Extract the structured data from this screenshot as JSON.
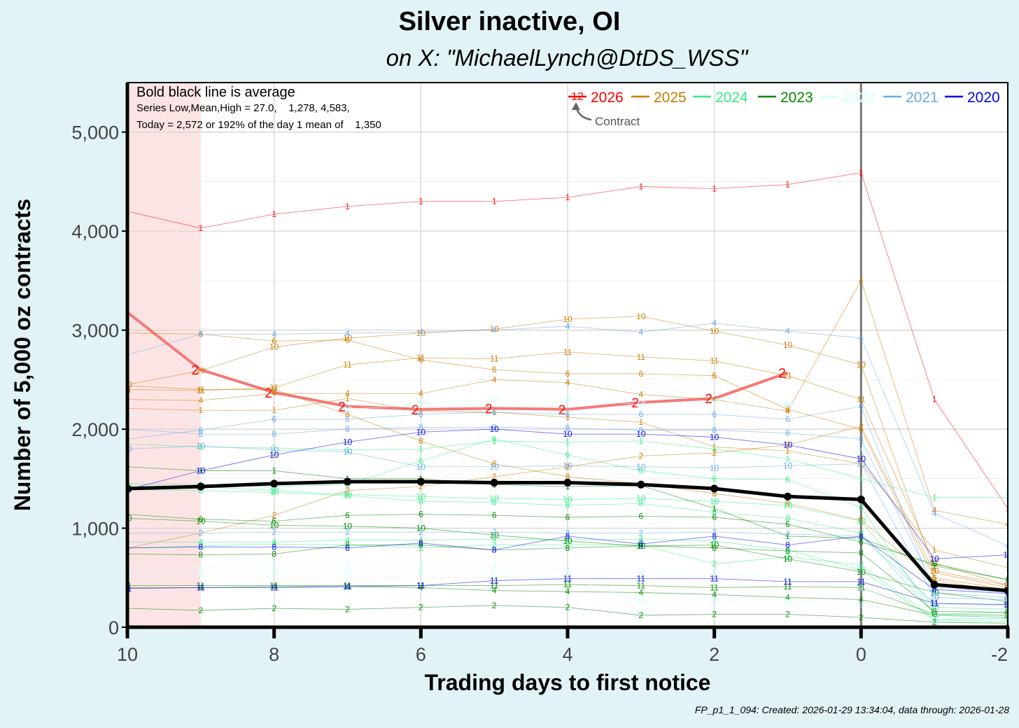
{
  "title": "Silver inactive, OI",
  "subtitle": "on X:   \"MichaelLynch@DtDS_WSS\"",
  "caption": "FP_p1_1_094: Created: 2026-01-29 13:34:04, data through: 2026-01-28",
  "annotations": {
    "line1": "Bold black line is average",
    "line2": "Series Low,Mean,High = 27.0,    1,278, 4,583,",
    "line3": "Today = 2,572 or 192% of the day 1 mean of    1,350",
    "contract_label": "Contract",
    "contract_code": "12"
  },
  "chart_data": {
    "type": "line",
    "xlabel": "Trading days to first notice",
    "ylabel": "Number of 5,000 oz contracts",
    "xlim": [
      10,
      -2
    ],
    "ylim": [
      0,
      5500
    ],
    "x_ticks": [
      "10",
      "8",
      "6",
      "4",
      "2",
      "0",
      "-2"
    ],
    "x_tick_values": [
      10,
      8,
      6,
      4,
      2,
      0,
      -2
    ],
    "y_ticks": [
      "0",
      "1,000",
      "2,000",
      "3,000",
      "4,000",
      "5,000"
    ],
    "y_tick_values": [
      0,
      1000,
      2000,
      3000,
      4000,
      5000
    ],
    "shaded_region": [
      10,
      9
    ],
    "vertical_line_at": 0,
    "legend": [
      {
        "label": "2026",
        "color": "#ff0000"
      },
      {
        "label": "2025",
        "color": "#cc7a00"
      },
      {
        "label": "2024",
        "color": "#33ee88"
      },
      {
        "label": "2023",
        "color": "#008800"
      },
      {
        "label": "2022",
        "color": "#ccffff"
      },
      {
        "label": "2021",
        "color": "#66aaee"
      },
      {
        "label": "2020",
        "color": "#0000ee"
      }
    ],
    "x": [
      10,
      9,
      8,
      7,
      6,
      5,
      4,
      3,
      2,
      1,
      0,
      -1,
      -2
    ],
    "series": [
      {
        "name": "2026-1",
        "year": "2026",
        "contract": "1",
        "color": "#ff0000",
        "values": [
          4200,
          4030,
          4170,
          4250,
          4300,
          4300,
          4340,
          4450,
          4430,
          4470,
          4590,
          2300,
          1200
        ]
      },
      {
        "name": "2026-2",
        "year": "2026",
        "contract": "2",
        "color": "#ff0000",
        "highlight": true,
        "values": [
          3180,
          2600,
          2370,
          2230,
          2200,
          2210,
          2200,
          2270,
          2310,
          2570,
          null,
          null,
          null
        ]
      },
      {
        "name": "2025-10",
        "year": "2025",
        "contract": "10",
        "color": "#cc7a00",
        "values": [
          2450,
          2590,
          2830,
          2920,
          2970,
          3010,
          3110,
          3140,
          2990,
          2850,
          2650,
          570,
          420
        ]
      },
      {
        "name": "2025-6",
        "year": "2025",
        "contract": "6",
        "color": "#cc7a00",
        "values": [
          2970,
          2960,
          2890,
          2900,
          2700,
          2600,
          2560,
          2560,
          2540,
          2200,
          2000,
          500,
          380
        ]
      },
      {
        "name": "2025-11",
        "year": "2025",
        "contract": "11",
        "color": "#cc7a00",
        "values": [
          2400,
          2390,
          2420,
          2650,
          2720,
          2710,
          2780,
          2730,
          2690,
          2540,
          2300,
          650,
          420
        ]
      },
      {
        "name": "2025-4",
        "year": "2025",
        "contract": "4",
        "color": "#cc7a00",
        "values": [
          2300,
          2290,
          2360,
          2360,
          2360,
          2500,
          2470,
          2350,
          2300,
          2180,
          3500,
          1180,
          1040
        ]
      },
      {
        "name": "2025-1",
        "year": "2025",
        "contract": "1",
        "color": "#cc7a00",
        "values": [
          2210,
          2190,
          2190,
          2310,
          2180,
          2170,
          2120,
          2070,
          1820,
          1780,
          1650,
          780,
          600
        ]
      },
      {
        "name": "2025-8",
        "year": "2025",
        "contract": "8",
        "color": "#cc7a00",
        "values": [
          2440,
          2400,
          2400,
          2150,
          1880,
          1650,
          1520,
          1450,
          1350,
          1250,
          1080,
          480,
          350
        ]
      },
      {
        "name": "2025-2",
        "year": "2025",
        "contract": "2",
        "color": "#cc7a00",
        "values": [
          800,
          950,
          1130,
          1380,
          1420,
          1520,
          1620,
          1730,
          1760,
          1840,
          2030,
          550,
          400
        ]
      },
      {
        "name": "2024-1",
        "year": "2024",
        "contract": "1",
        "color": "#33ee88",
        "values": [
          1850,
          1820,
          1810,
          1790,
          1800,
          1880,
          1870,
          1880,
          1800,
          1700,
          1500,
          1310,
          1310
        ]
      },
      {
        "name": "2024-6",
        "year": "2024",
        "contract": "6",
        "color": "#33ee88",
        "values": [
          1450,
          1440,
          1420,
          1440,
          1680,
          1900,
          1740,
          1580,
          1500,
          1490,
          1210,
          120,
          100
        ]
      },
      {
        "name": "2024-10",
        "year": "2024",
        "contract": "10",
        "color": "#33ee88",
        "values": [
          1420,
          1420,
          1380,
          1340,
          1320,
          1300,
          1290,
          1300,
          1270,
          1230,
          1070,
          200,
          180
        ]
      },
      {
        "name": "2024-8",
        "year": "2024",
        "contract": "8",
        "color": "#33ee88",
        "values": [
          1390,
          1380,
          1360,
          1330,
          1270,
          1260,
          1230,
          1250,
          1160,
          1100,
          950,
          130,
          150
        ]
      },
      {
        "name": "2024-2",
        "year": "2024",
        "contract": "2",
        "color": "#33ee88",
        "values": [
          800,
          820,
          840,
          830,
          800,
          830,
          830,
          830,
          640,
          710,
          630,
          80,
          90
        ]
      },
      {
        "name": "2024-4",
        "year": "2024",
        "contract": "4",
        "color": "#33ee88",
        "values": [
          860,
          860,
          860,
          880,
          880,
          890,
          880,
          890,
          870,
          780,
          580,
          70,
          60
        ]
      },
      {
        "name": "2023-1",
        "year": "2023",
        "contract": "1",
        "color": "#008800",
        "values": [
          1620,
          1580,
          1580,
          1500,
          1500,
          1440,
          1420,
          1430,
          1200,
          920,
          900,
          620,
          480
        ]
      },
      {
        "name": "2023-6",
        "year": "2023",
        "contract": "6",
        "color": "#008800",
        "values": [
          1140,
          1090,
          1070,
          1130,
          1140,
          1130,
          1110,
          1120,
          1110,
          1040,
          860,
          640,
          480
        ]
      },
      {
        "name": "2023-10",
        "year": "2023",
        "contract": "10",
        "color": "#008800",
        "values": [
          1100,
          1070,
          1030,
          1020,
          1000,
          930,
          870,
          820,
          830,
          690,
          560,
          350,
          260
        ]
      },
      {
        "name": "2023-8",
        "year": "2023",
        "contract": "8",
        "color": "#008800",
        "values": [
          740,
          730,
          740,
          830,
          830,
          780,
          800,
          820,
          800,
          770,
          750,
          160,
          150
        ]
      },
      {
        "name": "2023-11",
        "year": "2023",
        "contract": "11",
        "color": "#008800",
        "values": [
          420,
          420,
          420,
          420,
          420,
          420,
          430,
          420,
          400,
          410,
          400,
          130,
          120
        ]
      },
      {
        "name": "2023-4",
        "year": "2023",
        "contract": "4",
        "color": "#008800",
        "values": [
          400,
          400,
          410,
          410,
          400,
          370,
          360,
          350,
          330,
          300,
          280,
          120,
          100
        ]
      },
      {
        "name": "2023-2",
        "year": "2023",
        "contract": "2",
        "color": "#008800",
        "values": [
          190,
          170,
          190,
          180,
          200,
          220,
          200,
          120,
          130,
          130,
          100,
          50,
          40
        ]
      },
      {
        "name": "2022-10",
        "year": "2022",
        "contract": "10",
        "color": "#ccffff",
        "values": [
          2150,
          2130,
          2150,
          2200,
          2250,
          2300,
          2300,
          2250,
          2280,
          2250,
          1800,
          300,
          250
        ]
      },
      {
        "name": "2022-2",
        "year": "2022",
        "contract": "2",
        "color": "#ccffff",
        "values": [
          600,
          610,
          620,
          630,
          620,
          600,
          580,
          560,
          550,
          500,
          400,
          120,
          100
        ]
      },
      {
        "name": "2022-11",
        "year": "2022",
        "contract": "11",
        "color": "#ccffff",
        "values": [
          550,
          540,
          560,
          560,
          560,
          520,
          500,
          260,
          260,
          250,
          230,
          80,
          60
        ]
      },
      {
        "name": "2021-4",
        "year": "2021",
        "contract": "4",
        "color": "#66aaee",
        "values": [
          2750,
          2960,
          2960,
          2970,
          2980,
          3000,
          3040,
          2980,
          3070,
          2990,
          2920,
          1150,
          820
        ]
      },
      {
        "name": "2021-6",
        "year": "2021",
        "contract": "6",
        "color": "#66aaee",
        "values": [
          1900,
          1990,
          2100,
          2100,
          2150,
          2170,
          2150,
          2150,
          2150,
          2100,
          2230,
          350,
          300
        ]
      },
      {
        "name": "2021-10",
        "year": "2021",
        "contract": "10",
        "color": "#66aaee",
        "values": [
          1800,
          1830,
          1790,
          1770,
          1620,
          1620,
          1630,
          1620,
          1610,
          1630,
          1650,
          300,
          280
        ]
      },
      {
        "name": "2021-8",
        "year": "2021",
        "contract": "8",
        "color": "#66aaee",
        "values": [
          2000,
          1950,
          1950,
          2000,
          2020,
          2020,
          2010,
          1990,
          1990,
          1960,
          1900,
          400,
          350
        ]
      },
      {
        "name": "2021-2",
        "year": "2021",
        "contract": "2",
        "color": "#66aaee",
        "values": [
          950,
          950,
          960,
          960,
          960,
          960,
          950,
          950,
          960,
          940,
          920,
          240,
          220
        ]
      },
      {
        "name": "2020-10",
        "year": "2020",
        "contract": "10",
        "color": "#0000ee",
        "values": [
          1390,
          1580,
          1740,
          1870,
          1970,
          2000,
          1950,
          1950,
          1920,
          1840,
          1700,
          690,
          730
        ]
      },
      {
        "name": "2020-8",
        "year": "2020",
        "contract": "8",
        "color": "#0000ee",
        "values": [
          800,
          810,
          810,
          800,
          850,
          780,
          920,
          840,
          920,
          830,
          920,
          380,
          340
        ]
      },
      {
        "name": "2020-11",
        "year": "2020",
        "contract": "11",
        "color": "#0000ee",
        "values": [
          390,
          400,
          400,
          410,
          420,
          470,
          490,
          490,
          490,
          460,
          460,
          240,
          230
        ]
      },
      {
        "name": "Average",
        "year": "avg",
        "contract": "",
        "color": "#000000",
        "average": true,
        "values": [
          1400,
          1420,
          1450,
          1470,
          1470,
          1460,
          1460,
          1440,
          1400,
          1320,
          1290,
          430,
          370
        ]
      }
    ]
  }
}
